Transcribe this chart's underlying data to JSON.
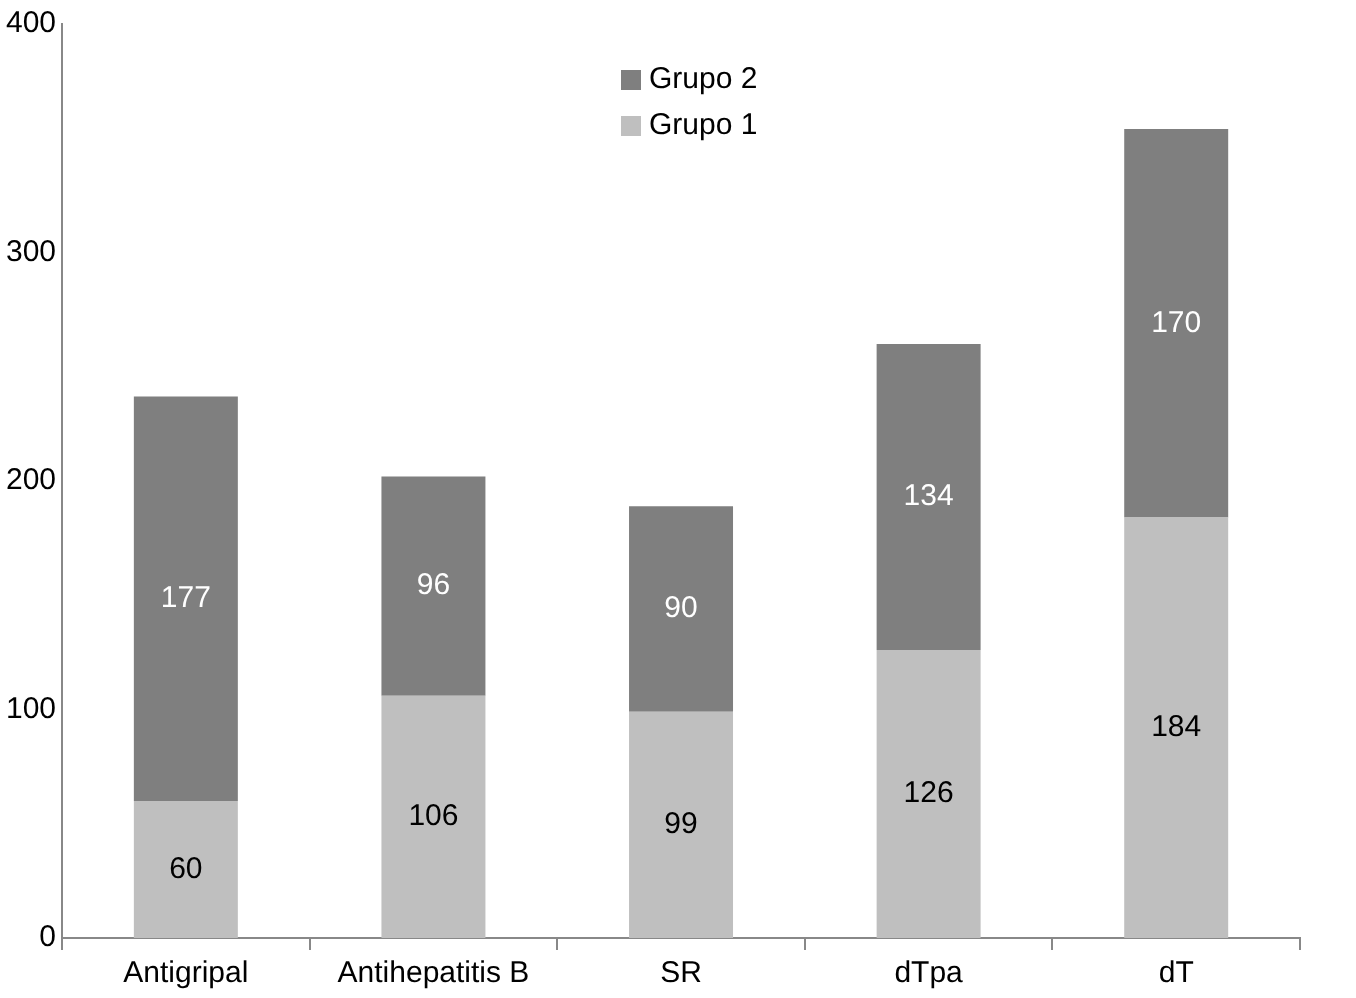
{
  "chart_data": {
    "type": "bar",
    "stacked": true,
    "categories": [
      "Antigripal",
      "Antihepatitis B",
      "SR",
      "dTpa",
      "dT"
    ],
    "series": [
      {
        "name": "Grupo 1",
        "color": "#bfbfbf",
        "values": [
          60,
          106,
          99,
          126,
          184
        ]
      },
      {
        "name": "Grupo 2",
        "color": "#7f7f7f",
        "values": [
          177,
          96,
          90,
          134,
          170
        ]
      }
    ],
    "ylim": [
      0,
      400
    ],
    "yticks": [
      0,
      100,
      200,
      300,
      400
    ],
    "grid": false,
    "legend": "top",
    "data_labels": true
  }
}
